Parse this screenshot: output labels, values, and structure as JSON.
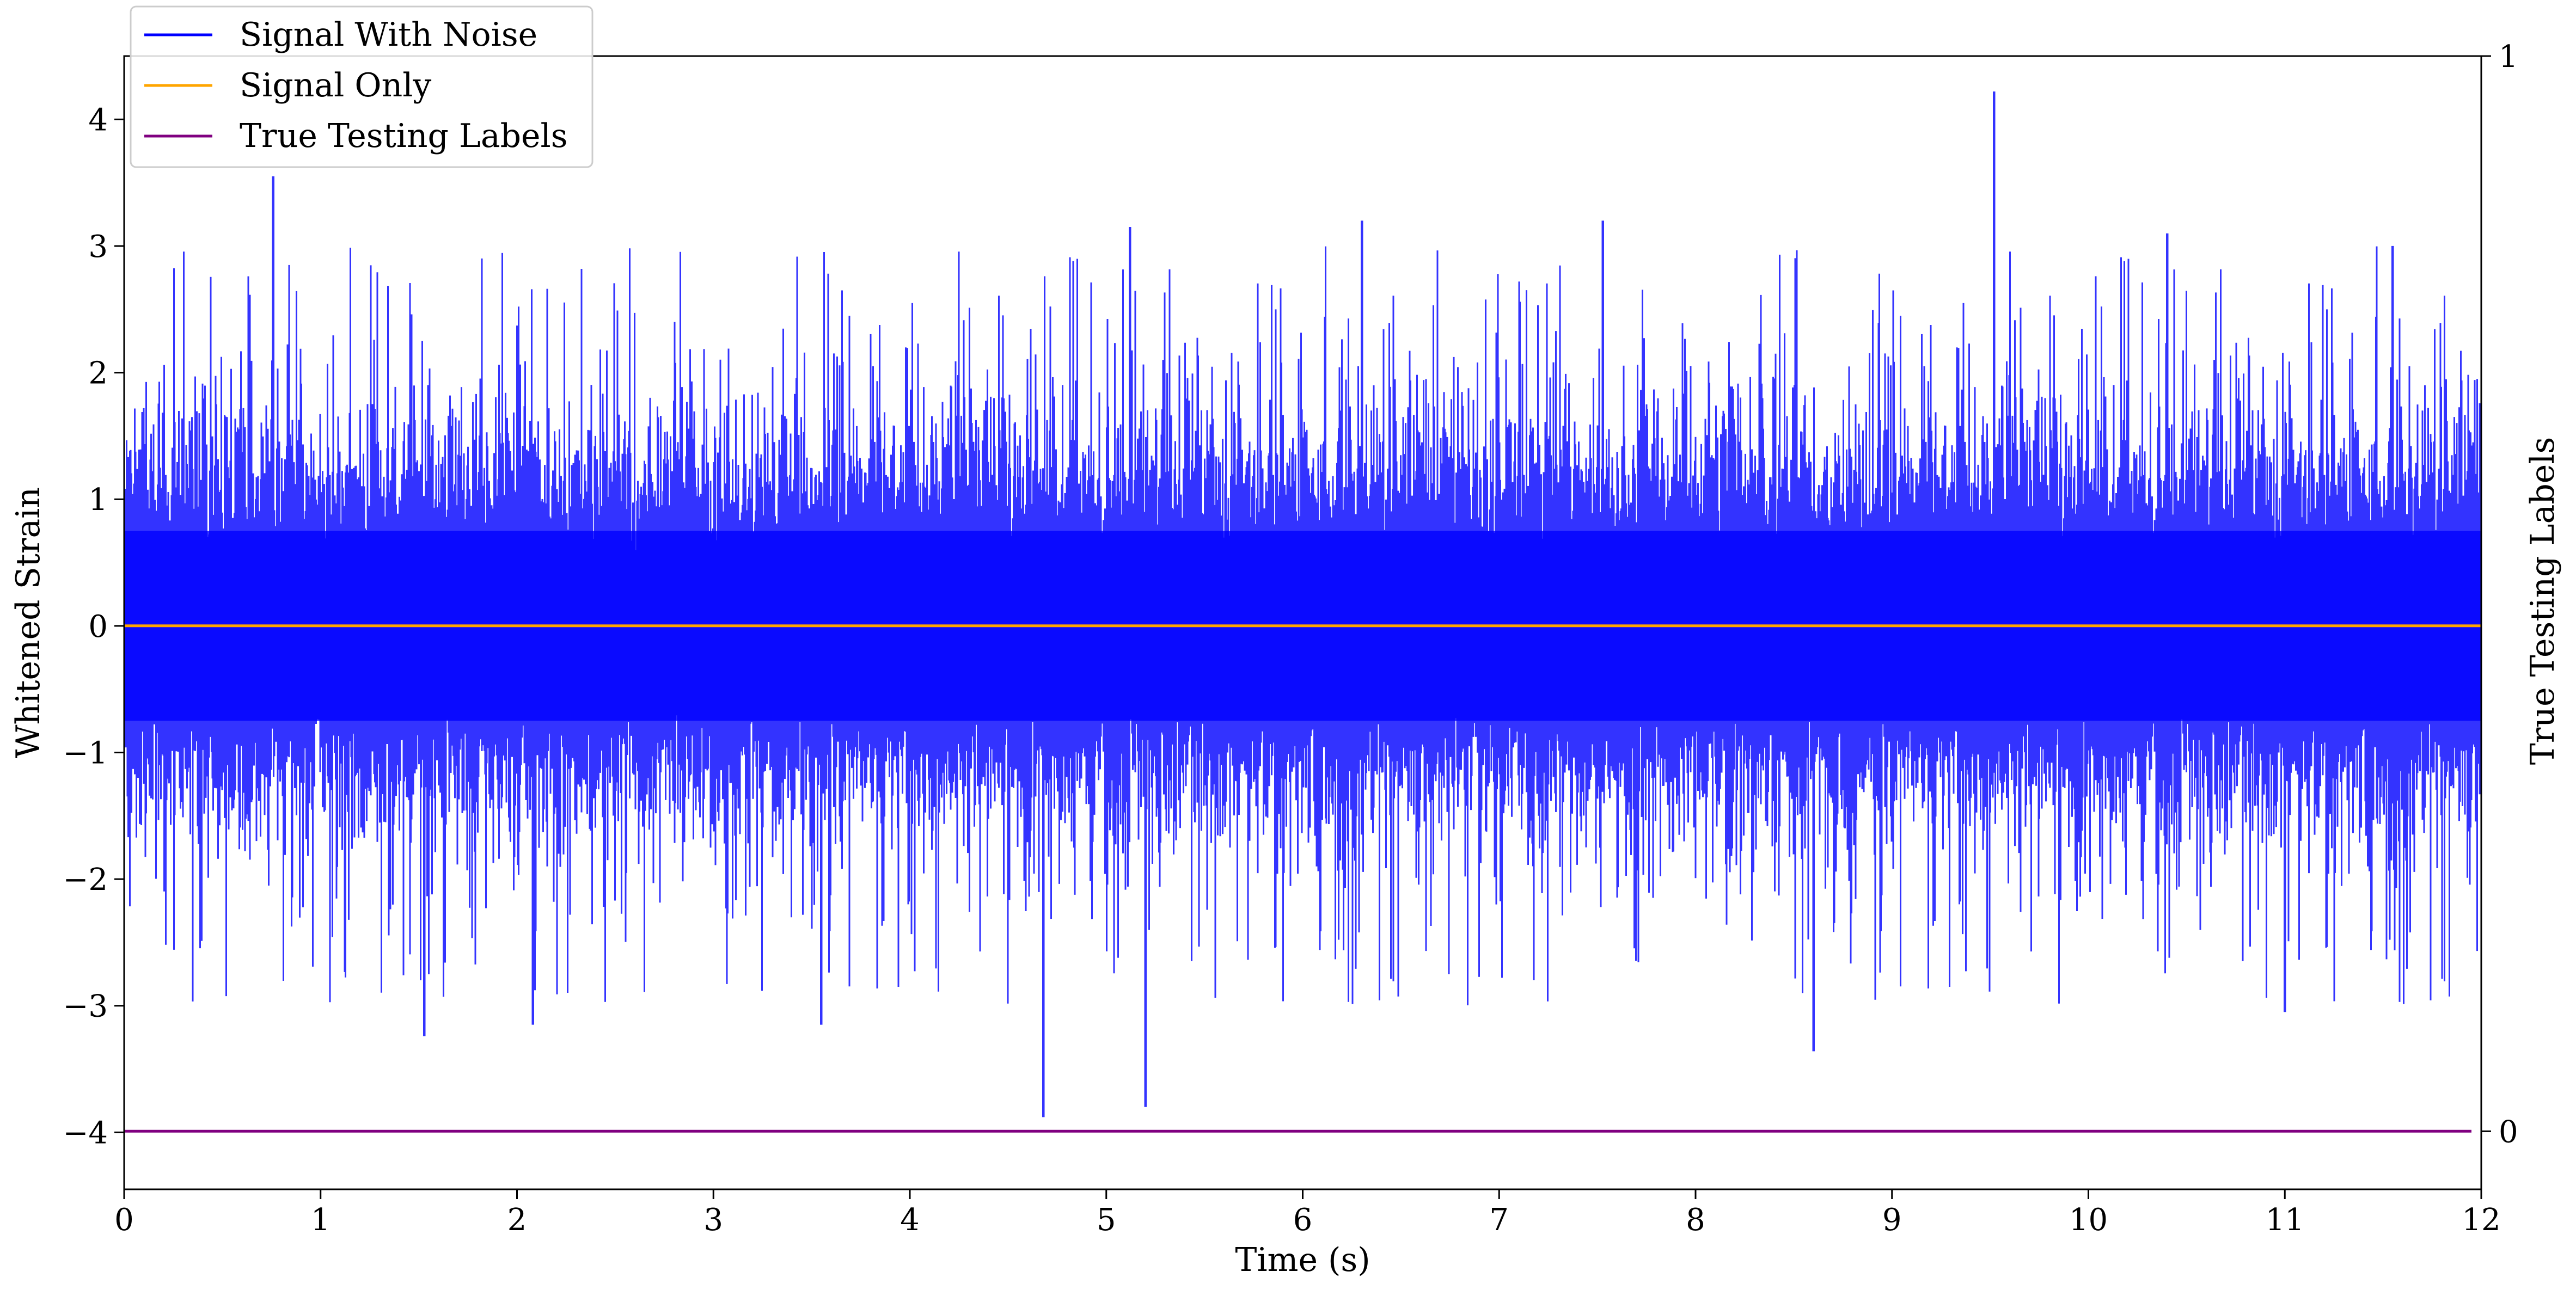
{
  "chart_data": {
    "type": "line",
    "title": "",
    "xlabel": "Time (s)",
    "ylabel": "Whitened Strain",
    "y2label": "True Testing Labels",
    "xlim": [
      0,
      12
    ],
    "ylim": [
      -4.45,
      4.5
    ],
    "y2lim": [
      -0.054,
      1.0
    ],
    "x_ticks": [
      0,
      1,
      2,
      3,
      4,
      5,
      6,
      7,
      8,
      9,
      10,
      11,
      12
    ],
    "x_tick_labels": [
      "0",
      "1",
      "2",
      "3",
      "4",
      "5",
      "6",
      "7",
      "8",
      "9",
      "10",
      "11",
      "12"
    ],
    "y_ticks": [
      -4,
      -3,
      -2,
      -1,
      0,
      1,
      2,
      3,
      4
    ],
    "y_tick_labels": [
      "−4",
      "−3",
      "−2",
      "−1",
      "0",
      "1",
      "2",
      "3",
      "4"
    ],
    "y2_ticks": [
      0,
      1
    ],
    "y2_tick_labels": [
      "0",
      "1"
    ],
    "grid": false,
    "legend_position": "top-left",
    "series": [
      {
        "name": "Signal With Noise",
        "color": "#0000ff",
        "axis": "left",
        "style": "dense noise, approx. white noise spanning about -4 to 4.2",
        "sample_rate": 4096,
        "notable_peaks": [
          {
            "x": 0.76,
            "y": 3.55
          },
          {
            "x": 9.52,
            "y": 4.22
          },
          {
            "x": 4.68,
            "y": -3.88
          },
          {
            "x": 5.2,
            "y": -3.8
          },
          {
            "x": 1.53,
            "y": -3.24
          },
          {
            "x": 8.6,
            "y": -3.36
          },
          {
            "x": 2.08,
            "y": -3.15
          },
          {
            "x": 3.55,
            "y": -3.15
          },
          {
            "x": 5.12,
            "y": 3.15
          },
          {
            "x": 6.3,
            "y": 3.2
          },
          {
            "x": 7.53,
            "y": 3.2
          },
          {
            "x": 10.4,
            "y": 3.1
          },
          {
            "x": 11.0,
            "y": -3.05
          },
          {
            "x": 11.55,
            "y": 3.0
          }
        ]
      },
      {
        "name": "Signal Only",
        "color": "#ffa500",
        "axis": "left",
        "x": [
          0,
          12
        ],
        "y": [
          0,
          0
        ]
      },
      {
        "name": "True Testing Labels",
        "color": "#800080",
        "axis": "right",
        "x": [
          0,
          11.95
        ],
        "y": [
          0,
          0
        ]
      }
    ]
  }
}
